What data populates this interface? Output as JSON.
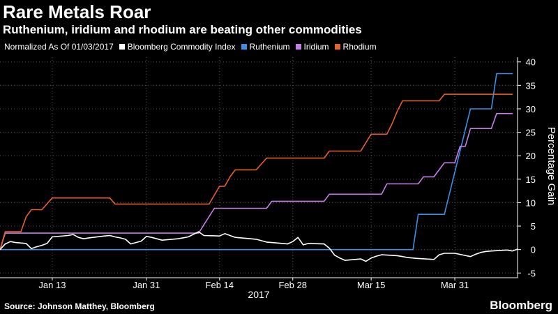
{
  "header": {
    "title": "Rare Metals Roar",
    "subtitle": "Ruthenium, iridium and rhodium are beating other commodities"
  },
  "legend": {
    "note": "Normalized As Of 01/03/2017"
  },
  "footer": {
    "source": "Source: Johnson Matthey, Bloomberg",
    "brand": "Bloomberg"
  },
  "colors": {
    "background": "#000000",
    "grid": "#555555",
    "bcom": "#ffffff",
    "ruthenium": "#3d8fe6",
    "iridium": "#c77ee8",
    "rhodium": "#e8602c"
  },
  "chart_data": {
    "type": "line",
    "title": "Rare Metals Roar",
    "subtitle": "Ruthenium, iridium and rhodium are beating other commodities",
    "ylabel": "Percentage Gain",
    "xlabel": "2017",
    "y_axis_side": "right",
    "ylim": [
      -6,
      41
    ],
    "yticks": [
      -5,
      0,
      5,
      10,
      15,
      20,
      25,
      30,
      35,
      40
    ],
    "xlim": [
      "2017-01-03",
      "2017-04-12"
    ],
    "xticks": [
      {
        "date": "2017-01-13",
        "label": "Jan 13"
      },
      {
        "date": "2017-01-31",
        "label": "Jan 31"
      },
      {
        "date": "2017-02-14",
        "label": "Feb 14"
      },
      {
        "date": "2017-02-28",
        "label": "Feb 28"
      },
      {
        "date": "2017-03-15",
        "label": "Mar 15"
      },
      {
        "date": "2017-03-31",
        "label": "Mar 31"
      }
    ],
    "grid": true,
    "legend_position": "top-left",
    "series": [
      {
        "name": "Bloomberg Commodity Index",
        "color": "#ffffff",
        "points": [
          [
            "2017-01-03",
            0
          ],
          [
            "2017-01-04",
            1.2
          ],
          [
            "2017-01-05",
            1.7
          ],
          [
            "2017-01-06",
            1.5
          ],
          [
            "2017-01-08",
            1.3
          ],
          [
            "2017-01-09",
            0.2
          ],
          [
            "2017-01-10",
            0.6
          ],
          [
            "2017-01-11",
            0.9
          ],
          [
            "2017-01-12",
            1.3
          ],
          [
            "2017-01-13",
            2.7
          ],
          [
            "2017-01-16",
            3.0
          ],
          [
            "2017-01-17",
            3.2
          ],
          [
            "2017-01-18",
            2.6
          ],
          [
            "2017-01-19",
            2.3
          ],
          [
            "2017-01-20",
            2.5
          ],
          [
            "2017-01-23",
            2.9
          ],
          [
            "2017-01-24",
            3.0
          ],
          [
            "2017-01-25",
            2.7
          ],
          [
            "2017-01-26",
            2.5
          ],
          [
            "2017-01-27",
            2.2
          ],
          [
            "2017-01-28",
            1.2
          ],
          [
            "2017-01-30",
            1.8
          ],
          [
            "2017-01-31",
            2.8
          ],
          [
            "2017-02-01",
            2.6
          ],
          [
            "2017-02-03",
            2.0
          ],
          [
            "2017-02-06",
            2.3
          ],
          [
            "2017-02-07",
            2.5
          ],
          [
            "2017-02-08",
            2.7
          ],
          [
            "2017-02-10",
            3.8
          ],
          [
            "2017-02-11",
            3.0
          ],
          [
            "2017-02-14",
            2.9
          ],
          [
            "2017-02-15",
            3.4
          ],
          [
            "2017-02-16",
            3.0
          ],
          [
            "2017-02-17",
            2.6
          ],
          [
            "2017-02-20",
            2.3
          ],
          [
            "2017-02-21",
            2.2
          ],
          [
            "2017-02-22",
            1.9
          ],
          [
            "2017-02-23",
            1.6
          ],
          [
            "2017-02-24",
            1.5
          ],
          [
            "2017-02-27",
            1.2
          ],
          [
            "2017-02-28",
            1.7
          ],
          [
            "2017-03-01",
            2.6
          ],
          [
            "2017-03-02",
            1.0
          ],
          [
            "2017-03-03",
            1.3
          ],
          [
            "2017-03-06",
            1.2
          ],
          [
            "2017-03-07",
            0.3
          ],
          [
            "2017-03-08",
            -1.2
          ],
          [
            "2017-03-09",
            -1.8
          ],
          [
            "2017-03-10",
            -2.3
          ],
          [
            "2017-03-13",
            -2.0
          ],
          [
            "2017-03-14",
            -2.5
          ],
          [
            "2017-03-15",
            -1.8
          ],
          [
            "2017-03-16",
            -1.4
          ],
          [
            "2017-03-17",
            -1.1
          ],
          [
            "2017-03-20",
            -1.3
          ],
          [
            "2017-03-21",
            -1.5
          ],
          [
            "2017-03-22",
            -1.7
          ],
          [
            "2017-03-23",
            -1.8
          ],
          [
            "2017-03-24",
            -1.9
          ],
          [
            "2017-03-27",
            -2.1
          ],
          [
            "2017-03-28",
            -1.1
          ],
          [
            "2017-03-29",
            -0.8
          ],
          [
            "2017-03-30",
            -0.8
          ],
          [
            "2017-03-31",
            -0.8
          ],
          [
            "2017-04-03",
            -1.5
          ],
          [
            "2017-04-04",
            -1.0
          ],
          [
            "2017-04-05",
            -0.6
          ],
          [
            "2017-04-06",
            -0.4
          ],
          [
            "2017-04-07",
            -0.3
          ],
          [
            "2017-04-10",
            -0.1
          ],
          [
            "2017-04-11",
            -0.3
          ],
          [
            "2017-04-12",
            0.1
          ]
        ]
      },
      {
        "name": "Ruthenium",
        "color": "#3d8fe6",
        "points": [
          [
            "2017-01-03",
            0
          ],
          [
            "2017-03-23",
            0
          ],
          [
            "2017-03-24",
            7.5
          ],
          [
            "2017-03-29",
            7.5
          ],
          [
            "2017-04-03",
            30.0
          ],
          [
            "2017-04-07",
            30.0
          ],
          [
            "2017-04-08",
            37.5
          ],
          [
            "2017-04-11",
            37.5
          ]
        ]
      },
      {
        "name": "Iridium",
        "color": "#c77ee8",
        "points": [
          [
            "2017-01-03",
            0
          ],
          [
            "2017-01-04",
            3.5
          ],
          [
            "2017-02-10",
            3.5
          ],
          [
            "2017-02-13",
            8.8
          ],
          [
            "2017-02-23",
            8.8
          ],
          [
            "2017-02-24",
            10.3
          ],
          [
            "2017-03-06",
            10.3
          ],
          [
            "2017-03-07",
            11.8
          ],
          [
            "2017-03-17",
            11.8
          ],
          [
            "2017-03-18",
            14.0
          ],
          [
            "2017-03-24",
            14.0
          ],
          [
            "2017-03-25",
            15.5
          ],
          [
            "2017-03-27",
            15.5
          ],
          [
            "2017-03-29",
            18.5
          ],
          [
            "2017-03-31",
            18.5
          ],
          [
            "2017-04-01",
            22.0
          ],
          [
            "2017-04-02",
            22.0
          ],
          [
            "2017-04-03",
            25.8
          ],
          [
            "2017-04-07",
            25.8
          ],
          [
            "2017-04-08",
            29.0
          ],
          [
            "2017-04-11",
            29.0
          ]
        ]
      },
      {
        "name": "Rhodium",
        "color": "#e8602c",
        "points": [
          [
            "2017-01-03",
            0
          ],
          [
            "2017-01-04",
            3.8
          ],
          [
            "2017-01-07",
            3.8
          ],
          [
            "2017-01-08",
            7.0
          ],
          [
            "2017-01-09",
            8.5
          ],
          [
            "2017-01-11",
            8.5
          ],
          [
            "2017-01-13",
            11.0
          ],
          [
            "2017-01-24",
            11.0
          ],
          [
            "2017-01-25",
            9.7
          ],
          [
            "2017-02-12",
            9.7
          ],
          [
            "2017-02-14",
            13.5
          ],
          [
            "2017-02-15",
            13.5
          ],
          [
            "2017-02-16",
            15.5
          ],
          [
            "2017-02-17",
            17.0
          ],
          [
            "2017-02-21",
            17.0
          ],
          [
            "2017-02-23",
            19.5
          ],
          [
            "2017-03-06",
            19.5
          ],
          [
            "2017-03-07",
            21.0
          ],
          [
            "2017-03-13",
            21.0
          ],
          [
            "2017-03-15",
            24.6
          ],
          [
            "2017-03-18",
            24.6
          ],
          [
            "2017-03-19",
            26.8
          ],
          [
            "2017-03-20",
            29.5
          ],
          [
            "2017-03-21",
            31.7
          ],
          [
            "2017-03-28",
            31.7
          ],
          [
            "2017-03-29",
            33.1
          ],
          [
            "2017-04-11",
            33.1
          ]
        ]
      }
    ]
  }
}
